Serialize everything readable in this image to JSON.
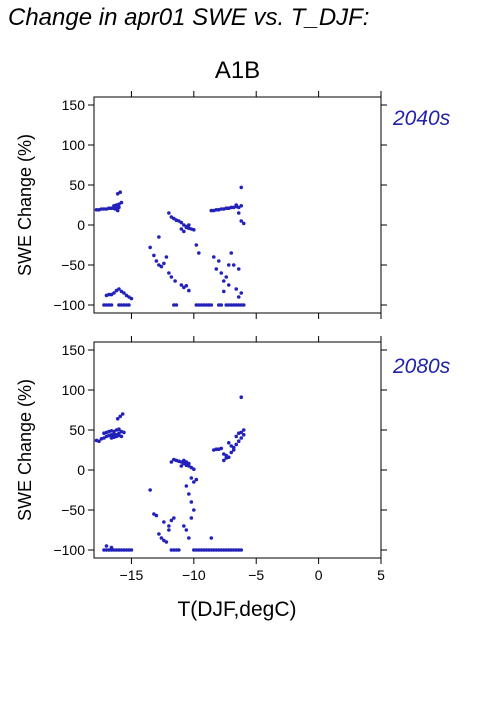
{
  "title": "Change in apr01 SWE vs. T_DJF:",
  "scenario": "A1B",
  "colors": {
    "points": "#2222bb",
    "period_label": "#2222aa",
    "axis": "#000000"
  },
  "chart_data": [
    {
      "type": "scatter",
      "period_label": "2040s",
      "xlabel": "T(DJF,degC)",
      "ylabel": "SWE Change (%)",
      "xlim": [
        -18,
        5
      ],
      "ylim": [
        -110,
        160
      ],
      "xticks": [
        -15,
        -10,
        -5,
        0,
        5
      ],
      "yticks": [
        -100,
        -50,
        0,
        50,
        100,
        150
      ],
      "points": [
        [
          -17.8,
          19
        ],
        [
          -17.6,
          19
        ],
        [
          -17.4,
          20
        ],
        [
          -17.2,
          20
        ],
        [
          -17.0,
          20
        ],
        [
          -16.8,
          21
        ],
        [
          -16.6,
          21
        ],
        [
          -16.4,
          21
        ],
        [
          -16.2,
          22
        ],
        [
          -16.0,
          22
        ],
        [
          -16.4,
          24
        ],
        [
          -16.2,
          25
        ],
        [
          -16.0,
          26
        ],
        [
          -15.8,
          28
        ],
        [
          -16.1,
          39
        ],
        [
          -15.9,
          41
        ],
        [
          -16.3,
          20
        ],
        [
          -16.1,
          18
        ],
        [
          -17.0,
          -88
        ],
        [
          -16.8,
          -87
        ],
        [
          -16.6,
          -87
        ],
        [
          -16.4,
          -85
        ],
        [
          -16.2,
          -82
        ],
        [
          -16.0,
          -80
        ],
        [
          -15.8,
          -83
        ],
        [
          -15.6,
          -85
        ],
        [
          -15.4,
          -88
        ],
        [
          -15.2,
          -90
        ],
        [
          -15.0,
          -92
        ],
        [
          -17.2,
          -100
        ],
        [
          -17.0,
          -100
        ],
        [
          -16.8,
          -100
        ],
        [
          -16.6,
          -100
        ],
        [
          -16.0,
          -100
        ],
        [
          -15.8,
          -100
        ],
        [
          -15.6,
          -100
        ],
        [
          -15.4,
          -100
        ],
        [
          -15.2,
          -100
        ],
        [
          -13.5,
          -28
        ],
        [
          -13.2,
          -38
        ],
        [
          -13.0,
          -45
        ],
        [
          -12.8,
          -50
        ],
        [
          -12.6,
          -52
        ],
        [
          -12.4,
          -48
        ],
        [
          -12.2,
          -40
        ],
        [
          -12.0,
          -60
        ],
        [
          -11.8,
          -65
        ],
        [
          -11.5,
          -70
        ],
        [
          -11.0,
          -75
        ],
        [
          -10.8,
          -78
        ],
        [
          -10.6,
          -76
        ],
        [
          -10.4,
          -82
        ],
        [
          -11.6,
          -100
        ],
        [
          -11.4,
          -100
        ],
        [
          -12.8,
          -15
        ],
        [
          -12.0,
          15
        ],
        [
          -11.8,
          10
        ],
        [
          -11.6,
          8
        ],
        [
          -11.4,
          6
        ],
        [
          -11.2,
          5
        ],
        [
          -11.0,
          3
        ],
        [
          -10.8,
          0
        ],
        [
          -10.6,
          -2
        ],
        [
          -10.4,
          -4
        ],
        [
          -10.2,
          -5
        ],
        [
          -10.0,
          -6
        ],
        [
          -11.0,
          -5
        ],
        [
          -10.8,
          -8
        ],
        [
          -10.6,
          -3
        ],
        [
          -10.4,
          0
        ],
        [
          -9.8,
          -25
        ],
        [
          -9.6,
          -35
        ],
        [
          -9.8,
          -100
        ],
        [
          -9.6,
          -100
        ],
        [
          -9.4,
          -100
        ],
        [
          -9.2,
          -100
        ],
        [
          -9.0,
          -100
        ],
        [
          -8.8,
          -100
        ],
        [
          -8.6,
          -100
        ],
        [
          -8.6,
          18
        ],
        [
          -8.4,
          18
        ],
        [
          -8.2,
          19
        ],
        [
          -8.0,
          19
        ],
        [
          -7.8,
          20
        ],
        [
          -7.6,
          20
        ],
        [
          -7.4,
          21
        ],
        [
          -7.2,
          21
        ],
        [
          -7.0,
          22
        ],
        [
          -6.8,
          22
        ],
        [
          -6.6,
          23
        ],
        [
          -6.4,
          22
        ],
        [
          -6.2,
          24
        ],
        [
          -6.4,
          15
        ],
        [
          -6.2,
          5
        ],
        [
          -6.0,
          2
        ],
        [
          -6.2,
          47
        ],
        [
          -6.6,
          25
        ],
        [
          -8.4,
          -40
        ],
        [
          -8.2,
          -55
        ],
        [
          -8.0,
          -45
        ],
        [
          -7.8,
          -60
        ],
        [
          -7.6,
          -70
        ],
        [
          -7.4,
          -65
        ],
        [
          -7.2,
          -75
        ],
        [
          -7.0,
          -35
        ],
        [
          -6.8,
          -50
        ],
        [
          -6.6,
          -80
        ],
        [
          -6.4,
          -90
        ],
        [
          -6.2,
          -85
        ],
        [
          -7.2,
          -50
        ],
        [
          -6.4,
          -55
        ],
        [
          -7.6,
          -83
        ],
        [
          -8.0,
          -100
        ],
        [
          -7.8,
          -100
        ],
        [
          -7.4,
          -100
        ],
        [
          -7.2,
          -100
        ],
        [
          -7.0,
          -100
        ],
        [
          -6.8,
          -100
        ],
        [
          -6.6,
          -100
        ],
        [
          -6.4,
          -100
        ],
        [
          -6.2,
          -100
        ],
        [
          -6.0,
          -100
        ]
      ]
    },
    {
      "type": "scatter",
      "period_label": "2080s",
      "xlabel": "T(DJF,degC)",
      "ylabel": "SWE Change (%)",
      "xlim": [
        -18,
        5
      ],
      "ylim": [
        -110,
        160
      ],
      "xticks": [
        -15,
        -10,
        -5,
        0,
        5
      ],
      "yticks": [
        -100,
        -50,
        0,
        50,
        100,
        150
      ],
      "points": [
        [
          -17.8,
          37
        ],
        [
          -17.6,
          36
        ],
        [
          -17.4,
          39
        ],
        [
          -17.2,
          40
        ],
        [
          -17.0,
          42
        ],
        [
          -16.8,
          43
        ],
        [
          -16.6,
          44
        ],
        [
          -16.4,
          45
        ],
        [
          -16.2,
          44
        ],
        [
          -16.0,
          46
        ],
        [
          -15.8,
          48
        ],
        [
          -15.6,
          47
        ],
        [
          -16.6,
          40
        ],
        [
          -16.4,
          41
        ],
        [
          -16.2,
          42
        ],
        [
          -16.0,
          43
        ],
        [
          -15.8,
          42
        ],
        [
          -17.2,
          46
        ],
        [
          -17.0,
          47
        ],
        [
          -16.8,
          48
        ],
        [
          -16.6,
          49
        ],
        [
          -16.4,
          48
        ],
        [
          -16.2,
          50
        ],
        [
          -16.0,
          51
        ],
        [
          -16.1,
          64
        ],
        [
          -15.9,
          67
        ],
        [
          -15.7,
          70
        ],
        [
          -17.0,
          -95
        ],
        [
          -16.6,
          -97
        ],
        [
          -17.2,
          -100
        ],
        [
          -17.0,
          -100
        ],
        [
          -16.8,
          -100
        ],
        [
          -16.6,
          -100
        ],
        [
          -16.4,
          -100
        ],
        [
          -16.2,
          -100
        ],
        [
          -16.0,
          -100
        ],
        [
          -15.8,
          -100
        ],
        [
          -15.6,
          -100
        ],
        [
          -15.4,
          -100
        ],
        [
          -15.2,
          -100
        ],
        [
          -15.0,
          -100
        ],
        [
          -13.5,
          -25
        ],
        [
          -13.2,
          -55
        ],
        [
          -13.0,
          -57
        ],
        [
          -12.8,
          -80
        ],
        [
          -12.6,
          -85
        ],
        [
          -12.4,
          -88
        ],
        [
          -12.2,
          -90
        ],
        [
          -12.4,
          -65
        ],
        [
          -12.0,
          -70
        ],
        [
          -11.8,
          -63
        ],
        [
          -11.6,
          -60
        ],
        [
          -12.0,
          -75
        ],
        [
          -11.8,
          -100
        ],
        [
          -11.6,
          -100
        ],
        [
          -11.4,
          -100
        ],
        [
          -11.2,
          -100
        ],
        [
          -11.8,
          10
        ],
        [
          -11.6,
          13
        ],
        [
          -11.4,
          12
        ],
        [
          -11.2,
          11
        ],
        [
          -11.0,
          10
        ],
        [
          -10.8,
          8
        ],
        [
          -10.6,
          6
        ],
        [
          -10.4,
          5
        ],
        [
          -10.2,
          3
        ],
        [
          -10.0,
          1
        ],
        [
          -10.8,
          12
        ],
        [
          -10.6,
          10
        ],
        [
          -10.4,
          8
        ],
        [
          -11.0,
          5
        ],
        [
          -10.6,
          -20
        ],
        [
          -10.4,
          -30
        ],
        [
          -10.2,
          -40
        ],
        [
          -10.0,
          -50
        ],
        [
          -10.2,
          -60
        ],
        [
          -10.6,
          -75
        ],
        [
          -10.4,
          -85
        ],
        [
          -10.0,
          -15
        ],
        [
          -10.2,
          -10
        ],
        [
          -9.8,
          -12
        ],
        [
          -10.8,
          -70
        ],
        [
          -10.0,
          -100
        ],
        [
          -9.8,
          -100
        ],
        [
          -9.6,
          -100
        ],
        [
          -9.4,
          -100
        ],
        [
          -9.2,
          -100
        ],
        [
          -9.0,
          -100
        ],
        [
          -8.8,
          -100
        ],
        [
          -8.6,
          -100
        ],
        [
          -8.4,
          -100
        ],
        [
          -8.2,
          -100
        ],
        [
          -8.0,
          -100
        ],
        [
          -7.8,
          -100
        ],
        [
          -7.6,
          -100
        ],
        [
          -7.4,
          -100
        ],
        [
          -7.2,
          -100
        ],
        [
          -7.0,
          -100
        ],
        [
          -6.8,
          -100
        ],
        [
          -6.6,
          -100
        ],
        [
          -6.4,
          -100
        ],
        [
          -6.2,
          -100
        ],
        [
          -8.6,
          -85
        ],
        [
          -8.4,
          25
        ],
        [
          -8.2,
          26
        ],
        [
          -8.0,
          26
        ],
        [
          -7.8,
          27
        ],
        [
          -7.6,
          20
        ],
        [
          -7.4,
          18
        ],
        [
          -7.2,
          16
        ],
        [
          -7.0,
          22
        ],
        [
          -6.8,
          28
        ],
        [
          -6.6,
          32
        ],
        [
          -6.4,
          36
        ],
        [
          -6.2,
          40
        ],
        [
          -6.0,
          44
        ],
        [
          -6.6,
          42
        ],
        [
          -6.4,
          46
        ],
        [
          -6.2,
          47
        ],
        [
          -6.0,
          50
        ],
        [
          -7.2,
          34
        ],
        [
          -7.0,
          30
        ],
        [
          -6.8,
          25
        ],
        [
          -7.6,
          12
        ],
        [
          -7.4,
          15
        ],
        [
          -6.2,
          91
        ]
      ]
    }
  ]
}
